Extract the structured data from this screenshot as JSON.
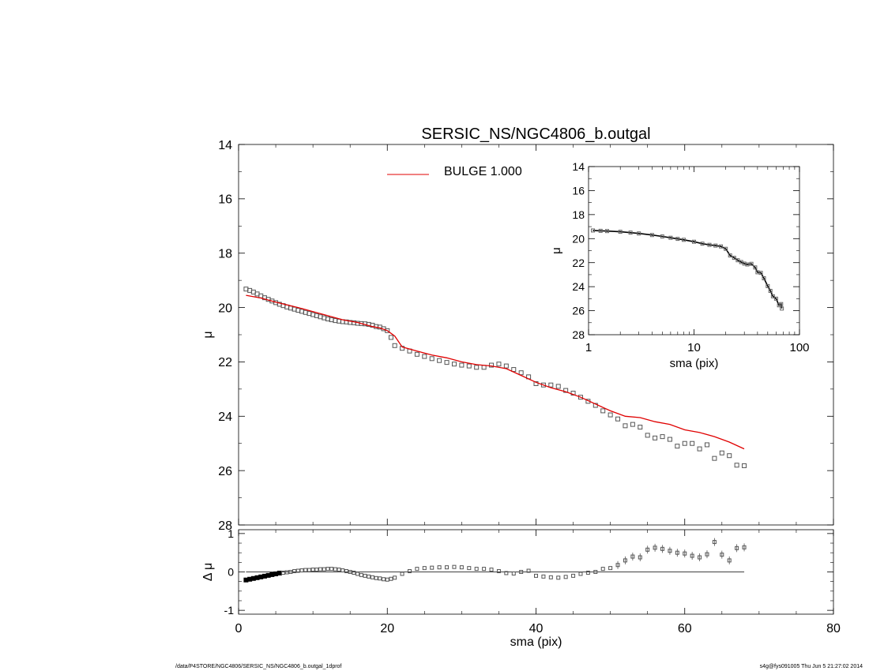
{
  "footer": {
    "left": "/data/P4STORE/NGC4806/SERSIC_NS/NGC4806_b.outgal_1dprof",
    "right": "s4g@fys091005  Thu Jun  5 21:27:02 2014"
  },
  "chart_data": [
    {
      "id": "main",
      "type": "scatter",
      "title": "SERSIC_NS/NGC4806_b.outgal",
      "xlabel": "",
      "ylabel": "μ",
      "xlim": [
        0,
        80
      ],
      "ylim": [
        28,
        14
      ],
      "y_inverted": true,
      "xticks": [
        0,
        20,
        40,
        60,
        80
      ],
      "yticks": [
        14,
        16,
        18,
        20,
        22,
        24,
        26,
        28
      ],
      "legend": {
        "position": "top-center",
        "entries": [
          {
            "label": "BULGE  1.000",
            "color": "#e00000"
          }
        ]
      },
      "series": [
        {
          "name": "BULGE  1.000",
          "kind": "line",
          "color": "#e00000",
          "x": [
            1,
            3,
            5,
            8,
            10,
            12,
            14,
            16,
            18,
            19,
            20,
            21,
            22,
            24,
            26,
            28,
            30,
            32,
            34,
            36,
            38,
            40,
            42,
            44,
            46,
            48,
            50,
            52,
            54,
            56,
            58,
            60,
            62,
            64,
            66,
            68
          ],
          "y": [
            19.55,
            19.65,
            19.8,
            20.0,
            20.15,
            20.3,
            20.45,
            20.55,
            20.7,
            20.75,
            20.85,
            21.05,
            21.45,
            21.6,
            21.75,
            21.85,
            22.0,
            22.1,
            22.15,
            22.25,
            22.5,
            22.75,
            22.95,
            23.1,
            23.3,
            23.55,
            23.8,
            24.0,
            24.05,
            24.2,
            24.3,
            24.5,
            24.6,
            24.75,
            24.95,
            25.2
          ]
        },
        {
          "name": "",
          "kind": "squares",
          "color": "#555555",
          "x": [
            1,
            1.5,
            2,
            2.5,
            3,
            3.5,
            4,
            4.5,
            5,
            5.5,
            6,
            6.5,
            7,
            7.5,
            8,
            8.5,
            9,
            9.5,
            10,
            10.5,
            11,
            11.5,
            12,
            12.5,
            13,
            13.5,
            14,
            14.5,
            15,
            15.5,
            16,
            16.5,
            17,
            17.5,
            18,
            18.5,
            19,
            19.5,
            20,
            20.5,
            21,
            22,
            23,
            24,
            25,
            26,
            27,
            28,
            29,
            30,
            31,
            32,
            33,
            34,
            35,
            36,
            37,
            38,
            39,
            40,
            41,
            42,
            43,
            44,
            45,
            46,
            47,
            48,
            49,
            50,
            51,
            52,
            53,
            54,
            55,
            56,
            57,
            58,
            59,
            60,
            61,
            62,
            63,
            64,
            65,
            66,
            67,
            68
          ],
          "y": [
            19.32,
            19.37,
            19.43,
            19.5,
            19.57,
            19.64,
            19.7,
            19.76,
            19.82,
            19.88,
            19.93,
            19.98,
            20.02,
            20.06,
            20.1,
            20.14,
            20.18,
            20.22,
            20.26,
            20.3,
            20.34,
            20.38,
            20.42,
            20.45,
            20.48,
            20.5,
            20.52,
            20.53,
            20.55,
            20.56,
            20.58,
            20.59,
            20.6,
            20.62,
            20.65,
            20.7,
            20.72,
            20.78,
            20.85,
            21.1,
            21.4,
            21.5,
            21.6,
            21.72,
            21.8,
            21.88,
            21.95,
            22.02,
            22.08,
            22.12,
            22.15,
            22.2,
            22.2,
            22.12,
            22.08,
            22.15,
            22.28,
            22.4,
            22.55,
            22.8,
            22.85,
            22.85,
            22.9,
            23.05,
            23.15,
            23.3,
            23.45,
            23.6,
            23.8,
            23.95,
            24.1,
            24.35,
            24.3,
            24.4,
            24.7,
            24.8,
            24.75,
            24.85,
            25.1,
            25.0,
            25.0,
            25.2,
            25.05,
            25.55,
            25.35,
            25.45,
            25.8,
            25.82
          ]
        }
      ]
    },
    {
      "id": "residual",
      "type": "scatter",
      "title": "",
      "xlabel": "sma (pix)",
      "ylabel": "Δ μ",
      "xlim": [
        0,
        80
      ],
      "ylim": [
        -1.1,
        1.1
      ],
      "xticks": [
        0,
        20,
        40,
        60,
        80
      ],
      "yticks": [
        -1,
        0,
        1
      ],
      "series": [
        {
          "name": "",
          "kind": "squares",
          "color": "#555555",
          "x": [
            1,
            1.5,
            2,
            2.5,
            3,
            3.5,
            4,
            4.5,
            5,
            5.5,
            6,
            6.5,
            7,
            7.5,
            8,
            8.5,
            9,
            9.5,
            10,
            10.5,
            11,
            11.5,
            12,
            12.5,
            13,
            13.5,
            14,
            14.5,
            15,
            15.5,
            16,
            16.5,
            17,
            17.5,
            18,
            18.5,
            19,
            19.5,
            20,
            20.5,
            21,
            22,
            23,
            24,
            25,
            26,
            27,
            28,
            29,
            30,
            31,
            32,
            33,
            34,
            35,
            36,
            37,
            38,
            39,
            40,
            41,
            42,
            43,
            44,
            45,
            46,
            47,
            48,
            49,
            50,
            51,
            52,
            53,
            54,
            55,
            56,
            57,
            58,
            59,
            60,
            61,
            62,
            63,
            64,
            65,
            66,
            67,
            68
          ],
          "y": [
            -0.21,
            -0.19,
            -0.17,
            -0.15,
            -0.13,
            -0.11,
            -0.09,
            -0.07,
            -0.05,
            -0.03,
            -0.02,
            -0.01,
            0.0,
            0.02,
            0.03,
            0.04,
            0.05,
            0.05,
            0.06,
            0.06,
            0.07,
            0.07,
            0.08,
            0.08,
            0.07,
            0.06,
            0.04,
            0.02,
            0.0,
            -0.02,
            -0.05,
            -0.08,
            -0.1,
            -0.12,
            -0.14,
            -0.16,
            -0.17,
            -0.19,
            -0.2,
            -0.18,
            -0.15,
            -0.05,
            0.02,
            0.08,
            0.1,
            0.11,
            0.12,
            0.12,
            0.13,
            0.12,
            0.1,
            0.08,
            0.08,
            0.06,
            0.02,
            -0.03,
            -0.04,
            0.0,
            0.03,
            -0.1,
            -0.12,
            -0.14,
            -0.15,
            -0.13,
            -0.1,
            -0.05,
            -0.02,
            0.0,
            0.08,
            0.1,
            0.18,
            0.3,
            0.4,
            0.38,
            0.58,
            0.63,
            0.6,
            0.55,
            0.5,
            0.48,
            0.42,
            0.38,
            0.46,
            0.78,
            0.45,
            0.3,
            0.62,
            0.64
          ]
        }
      ]
    },
    {
      "id": "inset",
      "type": "scatter",
      "title": "",
      "xlabel": "sma (pix)",
      "ylabel": "μ",
      "xscale": "log",
      "xlim": [
        1,
        100
      ],
      "ylim": [
        28,
        14
      ],
      "y_inverted": true,
      "xticks": [
        1,
        10,
        100
      ],
      "yticks": [
        14,
        16,
        18,
        20,
        22,
        24,
        26,
        28
      ],
      "series": [
        {
          "name": "",
          "kind": "squares+line",
          "color": "#555555",
          "x": [
            1.1,
            1.3,
            1.5,
            2,
            2.5,
            3,
            4,
            5,
            6,
            7,
            8,
            10,
            12,
            14,
            16,
            18,
            20,
            22,
            24,
            26,
            28,
            30,
            32,
            35,
            38,
            40,
            43,
            46,
            50,
            53,
            56,
            60,
            64,
            67,
            68
          ],
          "y": [
            19.32,
            19.35,
            19.37,
            19.43,
            19.5,
            19.57,
            19.7,
            19.82,
            19.93,
            20.02,
            20.1,
            20.26,
            20.42,
            20.52,
            20.58,
            20.65,
            20.85,
            21.4,
            21.6,
            21.8,
            21.95,
            22.08,
            22.15,
            22.1,
            22.4,
            22.8,
            22.85,
            23.3,
            23.95,
            24.35,
            24.8,
            25.0,
            25.55,
            25.45,
            25.82
          ]
        }
      ]
    }
  ]
}
